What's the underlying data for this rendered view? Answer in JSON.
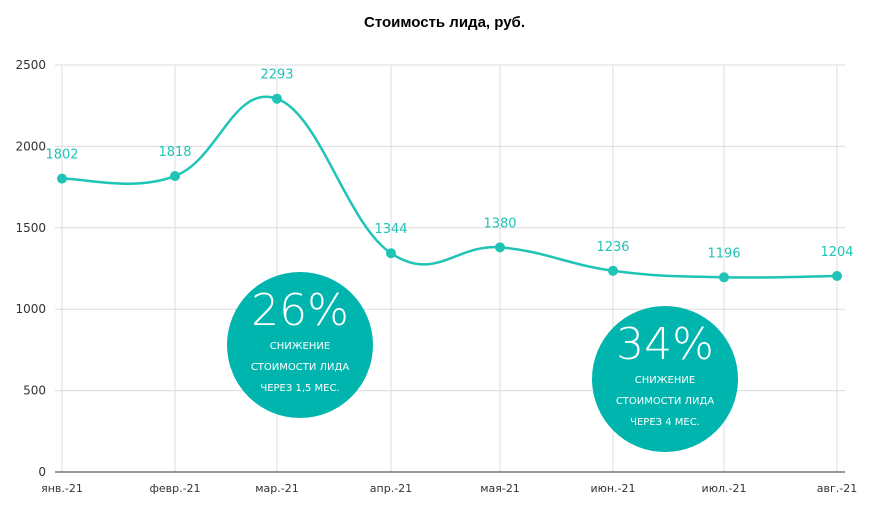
{
  "chart_data": {
    "type": "line",
    "title": "Стоимость лида, руб.",
    "categories": [
      "янв.-21",
      "февр.-21",
      "мар.-21",
      "апр.-21",
      "мая-21",
      "июн.-21",
      "июл.-21",
      "авг.-21"
    ],
    "values": [
      1802,
      1818,
      2293,
      1344,
      1380,
      1236,
      1196,
      1204
    ],
    "yticks": [
      0,
      500,
      1000,
      1500,
      2000,
      2500
    ],
    "ylim": [
      0,
      2500
    ],
    "grid": true,
    "color": "#1fc4b7",
    "annotations": [
      {
        "value": "26%",
        "lines": [
          "СНИЖЕНИЕ",
          "СТОИМОСТИ ЛИДА",
          "ЧЕРЕЗ 1,5 МЕС."
        ]
      },
      {
        "value": "34%",
        "lines": [
          "СНИЖЕНИЕ",
          "СТОИМОСТИ ЛИДА",
          "ЧЕРЕЗ 4 МЕС."
        ]
      }
    ]
  }
}
